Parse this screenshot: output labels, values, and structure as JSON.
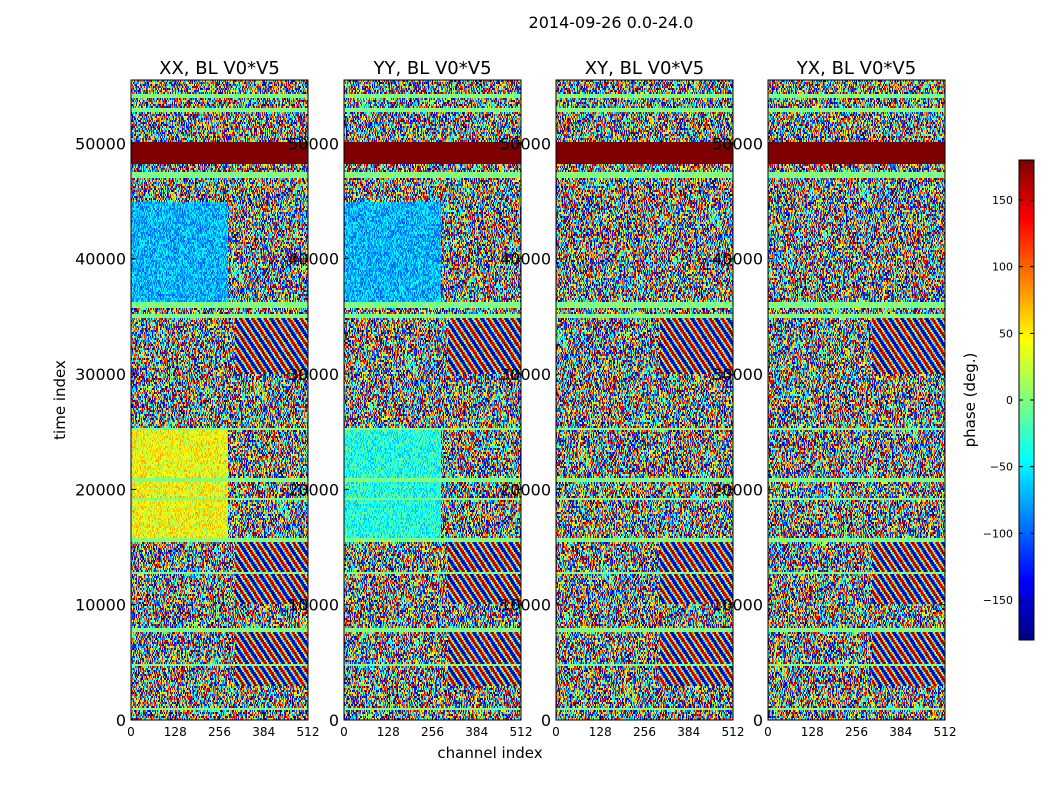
{
  "chart_data": {
    "type": "heatmap",
    "title": "2014-09-26 0.0-24.0",
    "xlabel": "channel index",
    "ylabel": "time index",
    "xlim": [
      0,
      512
    ],
    "ylim": [
      0,
      55500
    ],
    "xticks": [
      0,
      128,
      256,
      384,
      512
    ],
    "yticks": [
      0,
      10000,
      20000,
      30000,
      40000,
      50000
    ],
    "panels": [
      {
        "title": "XX, BL V0*V5"
      },
      {
        "title": "YY, BL V0*V5"
      },
      {
        "title": "XY, BL V0*V5"
      },
      {
        "title": "YX, BL V0*V5"
      }
    ],
    "colorbar": {
      "label": "phase (deg.)",
      "range": [
        -180,
        180
      ],
      "ticks": [
        -150,
        -100,
        -50,
        0,
        50,
        100,
        150
      ],
      "colormap": "jet"
    },
    "saturated_band": {
      "y_from": 48200,
      "y_to": 50200,
      "value": 180
    },
    "constant_bands": [
      {
        "y_from": 800,
        "y_to": 1100
      },
      {
        "y_from": 4600,
        "y_to": 4900
      },
      {
        "y_from": 7700,
        "y_to": 7900
      },
      {
        "y_from": 9800,
        "y_to": 9950
      },
      {
        "y_from": 12700,
        "y_to": 12900
      },
      {
        "y_from": 15500,
        "y_to": 15700
      },
      {
        "y_from": 19000,
        "y_to": 19300
      },
      {
        "y_from": 20700,
        "y_to": 20900
      },
      {
        "y_from": 25200,
        "y_to": 25400
      },
      {
        "y_from": 34800,
        "y_to": 35200
      },
      {
        "y_from": 35800,
        "y_to": 36200
      },
      {
        "y_from": 47000,
        "y_to": 47500
      },
      {
        "y_from": 52800,
        "y_to": 53100
      },
      {
        "y_from": 54000,
        "y_to": 54300
      }
    ],
    "fringe_regions": [
      {
        "x_from": 300,
        "x_to": 512,
        "y_from": 30000,
        "y_to": 35000
      },
      {
        "x_from": 300,
        "x_to": 512,
        "y_from": 10000,
        "y_to": 15500
      },
      {
        "x_from": 300,
        "x_to": 512,
        "y_from": 3000,
        "y_to": 8000
      }
    ],
    "colors": {
      "jet_stops": [
        "#00007f",
        "#0000ff",
        "#007fff",
        "#00ffff",
        "#7fff7f",
        "#ffff00",
        "#ff7f00",
        "#ff0000",
        "#7f0000"
      ]
    }
  }
}
